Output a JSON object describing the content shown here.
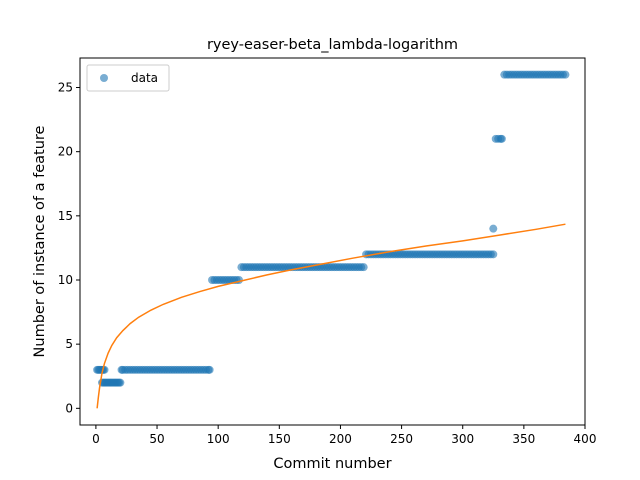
{
  "chart_data": {
    "type": "scatter",
    "title": "ryey-easer-beta_lambda-logarithm",
    "xlabel": "Commit number",
    "ylabel": "Number of instance of a feature",
    "xlim": [
      -13,
      400
    ],
    "ylim": [
      -1.3,
      27.3
    ],
    "xticks": [
      0,
      50,
      100,
      150,
      200,
      250,
      300,
      350,
      400
    ],
    "yticks": [
      0,
      5,
      10,
      15,
      20,
      25
    ],
    "legend": {
      "position": "top-left",
      "entries": [
        "data"
      ]
    },
    "grid": false,
    "colors": {
      "data": "#1f77b4",
      "fit": "#ff7f0e"
    },
    "series": [
      {
        "name": "data",
        "kind": "points",
        "points": [
          [
            1,
            3
          ],
          [
            2,
            3
          ],
          [
            3,
            3
          ],
          [
            4,
            3
          ],
          [
            5,
            3
          ],
          [
            6,
            3
          ],
          [
            7,
            3
          ],
          [
            5,
            2
          ],
          [
            6,
            2
          ],
          [
            7,
            2
          ],
          [
            8,
            2
          ],
          [
            9,
            2
          ],
          [
            10,
            2
          ],
          [
            11,
            2
          ],
          [
            12,
            2
          ],
          [
            13,
            2
          ],
          [
            14,
            2
          ],
          [
            15,
            2
          ],
          [
            16,
            2
          ],
          [
            17,
            2
          ],
          [
            18,
            2
          ],
          [
            19,
            2
          ],
          [
            20,
            2
          ],
          [
            21,
            3
          ],
          [
            22,
            3
          ],
          [
            24,
            3
          ],
          [
            26,
            3
          ],
          [
            28,
            3
          ],
          [
            30,
            3
          ],
          [
            32,
            3
          ],
          [
            34,
            3
          ],
          [
            36,
            3
          ],
          [
            38,
            3
          ],
          [
            40,
            3
          ],
          [
            42,
            3
          ],
          [
            44,
            3
          ],
          [
            46,
            3
          ],
          [
            48,
            3
          ],
          [
            50,
            3
          ],
          [
            52,
            3
          ],
          [
            54,
            3
          ],
          [
            56,
            3
          ],
          [
            58,
            3
          ],
          [
            60,
            3
          ],
          [
            62,
            3
          ],
          [
            64,
            3
          ],
          [
            66,
            3
          ],
          [
            68,
            3
          ],
          [
            70,
            3
          ],
          [
            72,
            3
          ],
          [
            74,
            3
          ],
          [
            76,
            3
          ],
          [
            78,
            3
          ],
          [
            80,
            3
          ],
          [
            82,
            3
          ],
          [
            84,
            3
          ],
          [
            86,
            3
          ],
          [
            88,
            3
          ],
          [
            90,
            3
          ],
          [
            92,
            3
          ],
          [
            93,
            3
          ],
          [
            95,
            10
          ],
          [
            97,
            10
          ],
          [
            99,
            10
          ],
          [
            101,
            10
          ],
          [
            103,
            10
          ],
          [
            105,
            10
          ],
          [
            107,
            10
          ],
          [
            109,
            10
          ],
          [
            111,
            10
          ],
          [
            113,
            10
          ],
          [
            115,
            10
          ],
          [
            117,
            10
          ],
          [
            119,
            11
          ],
          [
            121,
            11
          ],
          [
            123,
            11
          ],
          [
            125,
            11
          ],
          [
            127,
            11
          ],
          [
            129,
            11
          ],
          [
            131,
            11
          ],
          [
            133,
            11
          ],
          [
            135,
            11
          ],
          [
            137,
            11
          ],
          [
            139,
            11
          ],
          [
            141,
            11
          ],
          [
            143,
            11
          ],
          [
            145,
            11
          ],
          [
            147,
            11
          ],
          [
            149,
            11
          ],
          [
            151,
            11
          ],
          [
            153,
            11
          ],
          [
            155,
            11
          ],
          [
            157,
            11
          ],
          [
            159,
            11
          ],
          [
            161,
            11
          ],
          [
            163,
            11
          ],
          [
            165,
            11
          ],
          [
            167,
            11
          ],
          [
            169,
            11
          ],
          [
            171,
            11
          ],
          [
            173,
            11
          ],
          [
            175,
            11
          ],
          [
            177,
            11
          ],
          [
            179,
            11
          ],
          [
            181,
            11
          ],
          [
            183,
            11
          ],
          [
            185,
            11
          ],
          [
            187,
            11
          ],
          [
            189,
            11
          ],
          [
            191,
            11
          ],
          [
            193,
            11
          ],
          [
            195,
            11
          ],
          [
            197,
            11
          ],
          [
            199,
            11
          ],
          [
            201,
            11
          ],
          [
            203,
            11
          ],
          [
            205,
            11
          ],
          [
            207,
            11
          ],
          [
            209,
            11
          ],
          [
            211,
            11
          ],
          [
            213,
            11
          ],
          [
            215,
            11
          ],
          [
            217,
            11
          ],
          [
            219,
            11
          ],
          [
            221,
            12
          ],
          [
            223,
            12
          ],
          [
            225,
            12
          ],
          [
            227,
            12
          ],
          [
            229,
            12
          ],
          [
            231,
            12
          ],
          [
            233,
            12
          ],
          [
            235,
            12
          ],
          [
            237,
            12
          ],
          [
            239,
            12
          ],
          [
            241,
            12
          ],
          [
            243,
            12
          ],
          [
            245,
            12
          ],
          [
            247,
            12
          ],
          [
            249,
            12
          ],
          [
            251,
            12
          ],
          [
            253,
            12
          ],
          [
            255,
            12
          ],
          [
            257,
            12
          ],
          [
            259,
            12
          ],
          [
            261,
            12
          ],
          [
            263,
            12
          ],
          [
            265,
            12
          ],
          [
            267,
            12
          ],
          [
            269,
            12
          ],
          [
            271,
            12
          ],
          [
            273,
            12
          ],
          [
            275,
            12
          ],
          [
            277,
            12
          ],
          [
            279,
            12
          ],
          [
            281,
            12
          ],
          [
            283,
            12
          ],
          [
            285,
            12
          ],
          [
            287,
            12
          ],
          [
            289,
            12
          ],
          [
            291,
            12
          ],
          [
            293,
            12
          ],
          [
            295,
            12
          ],
          [
            297,
            12
          ],
          [
            299,
            12
          ],
          [
            301,
            12
          ],
          [
            303,
            12
          ],
          [
            305,
            12
          ],
          [
            307,
            12
          ],
          [
            309,
            12
          ],
          [
            311,
            12
          ],
          [
            313,
            12
          ],
          [
            315,
            12
          ],
          [
            317,
            12
          ],
          [
            319,
            12
          ],
          [
            321,
            12
          ],
          [
            323,
            12
          ],
          [
            325,
            12
          ],
          [
            325,
            14
          ],
          [
            327,
            21
          ],
          [
            329,
            21
          ],
          [
            331,
            21
          ],
          [
            332,
            21
          ],
          [
            334,
            26
          ],
          [
            336,
            26
          ],
          [
            338,
            26
          ],
          [
            340,
            26
          ],
          [
            342,
            26
          ],
          [
            344,
            26
          ],
          [
            346,
            26
          ],
          [
            348,
            26
          ],
          [
            350,
            26
          ],
          [
            352,
            26
          ],
          [
            354,
            26
          ],
          [
            356,
            26
          ],
          [
            358,
            26
          ],
          [
            360,
            26
          ],
          [
            362,
            26
          ],
          [
            364,
            26
          ],
          [
            366,
            26
          ],
          [
            368,
            26
          ],
          [
            370,
            26
          ],
          [
            372,
            26
          ],
          [
            374,
            26
          ],
          [
            376,
            26
          ],
          [
            378,
            26
          ],
          [
            380,
            26
          ],
          [
            382,
            26
          ],
          [
            384,
            26
          ]
        ]
      },
      {
        "kind": "line",
        "x": [
          1,
          2,
          3,
          5,
          7,
          10,
          13,
          17,
          22,
          28,
          35,
          45,
          55,
          70,
          85,
          100,
          120,
          140,
          160,
          185,
          210,
          240,
          270,
          300,
          330,
          360,
          384
        ],
        "y": [
          0,
          0.85,
          1.6,
          2.75,
          3.5,
          4.3,
          4.9,
          5.5,
          6.05,
          6.6,
          7.1,
          7.65,
          8.1,
          8.65,
          9.1,
          9.5,
          9.95,
          10.4,
          10.8,
          11.25,
          11.7,
          12.2,
          12.65,
          13.05,
          13.5,
          13.95,
          14.35
        ]
      }
    ]
  }
}
